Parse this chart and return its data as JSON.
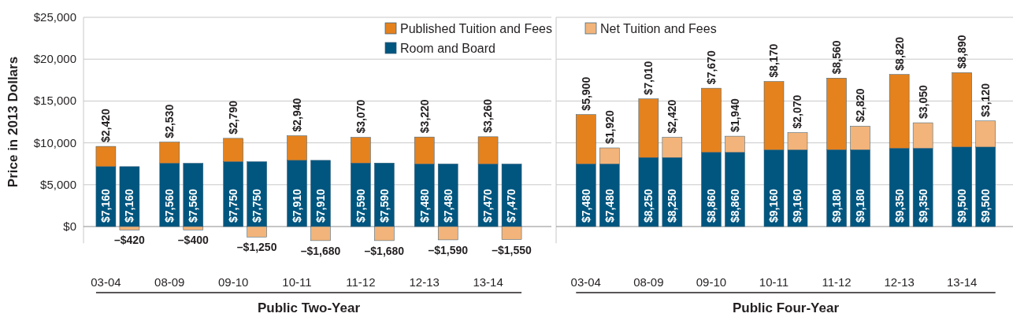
{
  "chart_data": [
    {
      "type": "bar",
      "ylabel": "Price in 2013 Dollars",
      "xlabel": "Public Two-Year",
      "categories": [
        "03-04",
        null,
        "08-09",
        null,
        "09-10",
        null,
        "10-11",
        null,
        "11-12",
        null,
        "12-13",
        null,
        "13-14",
        null
      ],
      "stacked": true,
      "ylim": [
        -2000,
        25000
      ],
      "yticks": [
        {
          "value": 0,
          "label": "$0"
        },
        {
          "value": 5000,
          "label": "$5,000"
        },
        {
          "value": 10000,
          "label": "$10,000"
        },
        {
          "value": 15000,
          "label": "$15,000"
        },
        {
          "value": 20000,
          "label": "$20,000"
        },
        {
          "value": 25000,
          "label": "$25,000"
        }
      ],
      "grid": "y",
      "legend": "top",
      "series": [
        {
          "name": "Room and Board",
          "color": "#00567f",
          "values": [
            7160,
            7160,
            7560,
            7560,
            7750,
            7750,
            7910,
            7910,
            7590,
            7590,
            7480,
            7480,
            7470,
            7470
          ],
          "value_labels": [
            "$7,160",
            "$7,160",
            "$7,560",
            "$7,560",
            "$7,750",
            "$7,750",
            "$7,910",
            "$7,910",
            "$7,590",
            "$7,590",
            "$7,480",
            "$7,480",
            "$7,470",
            "$7,470"
          ]
        },
        {
          "name": "Published Tuition and Fees",
          "color": "#e5821e",
          "values": [
            2420,
            null,
            2530,
            null,
            2790,
            null,
            2940,
            null,
            3070,
            null,
            3220,
            null,
            3260,
            null
          ],
          "value_labels": [
            "$2,420",
            null,
            "$2,530",
            null,
            "$2,790",
            null,
            "$2,940",
            null,
            "$3,070",
            null,
            "$3,220",
            null,
            "$3,260",
            null
          ]
        },
        {
          "name": "Net Tuition and Fees",
          "color": "#f2b47a",
          "values": [
            null,
            -420,
            null,
            -400,
            null,
            -1250,
            null,
            -1680,
            null,
            -1680,
            null,
            -1590,
            null,
            -1550
          ],
          "value_labels": [
            null,
            "–$420",
            null,
            "–$400",
            null,
            "–$1,250",
            null,
            "–$1,680",
            null,
            "–$1,680",
            null,
            "–$1,590",
            null,
            "–$1,550"
          ]
        }
      ]
    },
    {
      "type": "bar",
      "xlabel": "Public Four-Year",
      "categories": [
        "03-04",
        null,
        "08-09",
        null,
        "09-10",
        null,
        "10-11",
        null,
        "11-12",
        null,
        "12-13",
        null,
        "13-14",
        null
      ],
      "stacked": true,
      "ylim": [
        -2000,
        25000
      ],
      "yticks": [
        0,
        5000,
        10000,
        15000,
        20000,
        25000
      ],
      "grid": "y",
      "tick_labels": "x",
      "series": [
        {
          "color": "#00567f",
          "values": [
            7480,
            7480,
            8250,
            8250,
            8860,
            8860,
            9160,
            9160,
            9180,
            9180,
            9350,
            9350,
            9500,
            9500
          ],
          "value_labels": [
            "$7,480",
            "$7,480",
            "$8,250",
            "$8,250",
            "$8,860",
            "$8,860",
            "$9,160",
            "$9,160",
            "$9,180",
            "$9,180",
            "$9,350",
            "$9,350",
            "$9,500",
            "$9,500"
          ]
        },
        {
          "color": "#e5821e",
          "values": [
            5900,
            null,
            7010,
            null,
            7670,
            null,
            8170,
            null,
            8560,
            null,
            8820,
            null,
            8890,
            null
          ],
          "value_labels": [
            "$5,900",
            null,
            "$7,010",
            null,
            "$7,670",
            null,
            "$8,170",
            null,
            "$8,560",
            null,
            "$8,820",
            null,
            "$8,890",
            null
          ]
        },
        {
          "color": "#f2b47a",
          "values": [
            null,
            1920,
            null,
            2420,
            null,
            1940,
            null,
            2070,
            null,
            2820,
            null,
            3050,
            null,
            3120
          ],
          "value_labels": [
            null,
            "$1,920",
            null,
            "$2,420",
            null,
            "$1,940",
            null,
            "$2,070",
            null,
            "$2,820",
            null,
            "$3,050",
            null,
            "$3,120"
          ]
        }
      ]
    }
  ]
}
